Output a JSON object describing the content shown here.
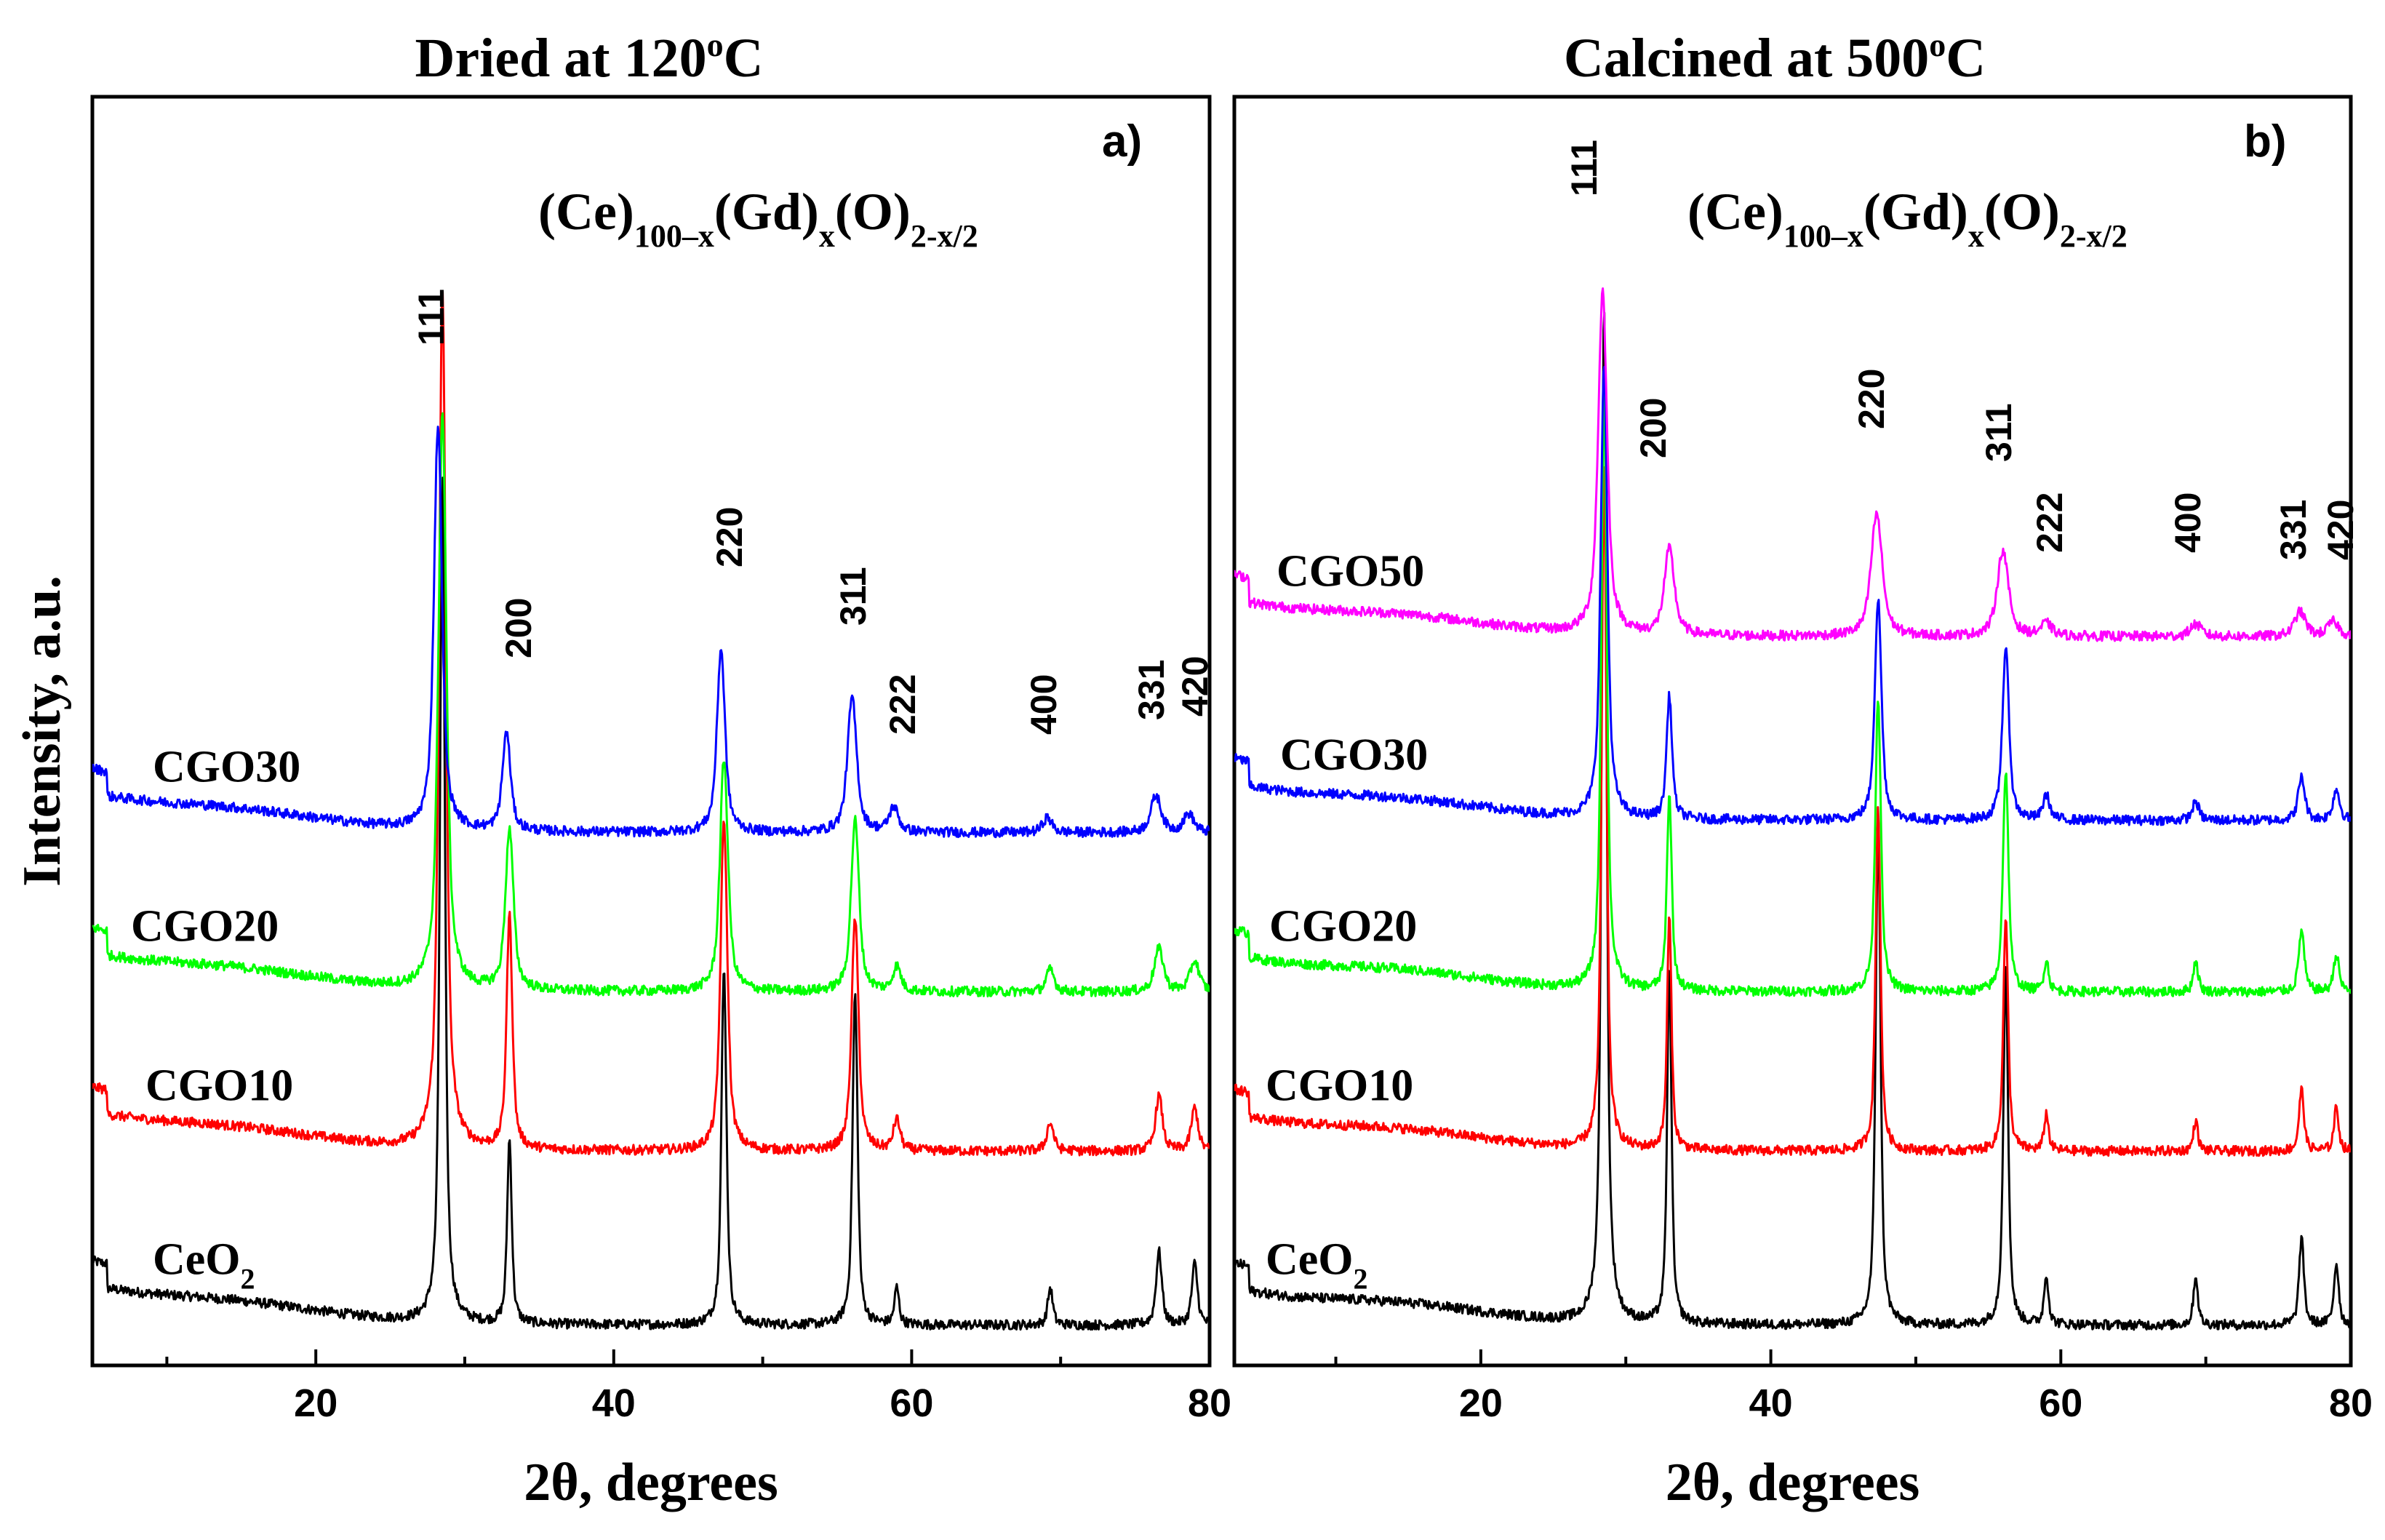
{
  "chart_data": [
    {
      "type": "line",
      "panel": "a)",
      "title": "Dried at 120°C",
      "title_main": "Dried at 120",
      "title_sup": "o",
      "title_unit": "C",
      "formula": {
        "p1": "(Ce)",
        "s1": "100–x",
        "p2": "(Gd)",
        "s2": "x",
        "p3": "(O)",
        "s3": "2-x/2"
      },
      "xlabel": "2θ, degrees",
      "ylabel": "Intensity, a.u.",
      "xlim": [
        5,
        80
      ],
      "xticks": [
        20,
        40,
        60,
        80
      ],
      "xtick_labels": [
        "20",
        "40",
        "60",
        "80"
      ],
      "minor_xticks": [
        10,
        30,
        50,
        70
      ],
      "ylim": [
        0,
        1.0
      ],
      "reflections": [
        {
          "hkl": "111",
          "x": 28.5
        },
        {
          "hkl": "200",
          "x": 33.0
        },
        {
          "hkl": "220",
          "x": 47.4
        },
        {
          "hkl": "311",
          "x": 56.2
        },
        {
          "hkl": "222",
          "x": 59.0
        },
        {
          "hkl": "400",
          "x": 69.3
        },
        {
          "hkl": "331",
          "x": 76.6
        },
        {
          "hkl": "420",
          "x": 79.0
        }
      ],
      "series": [
        {
          "name": "CeO2",
          "label_main": "CeO",
          "label_sub": "2",
          "color": "#000000",
          "baseline": 0.018,
          "peaks": [
            [
              28.5,
              0.69,
              0.22
            ],
            [
              33.0,
              0.15,
              0.2
            ],
            [
              47.4,
              0.29,
              0.22
            ],
            [
              56.2,
              0.27,
              0.22
            ],
            [
              59.0,
              0.03,
              0.2
            ],
            [
              69.3,
              0.03,
              0.22
            ],
            [
              76.6,
              0.06,
              0.25
            ],
            [
              79.0,
              0.05,
              0.25
            ]
          ]
        },
        {
          "name": "CGO10",
          "label_main": "CGO10",
          "label_sub": "",
          "color": "#ff0000",
          "baseline": 0.16,
          "peaks": [
            [
              28.5,
              0.7,
              0.3
            ],
            [
              33.0,
              0.19,
              0.25
            ],
            [
              47.4,
              0.27,
              0.3
            ],
            [
              56.2,
              0.19,
              0.3
            ],
            [
              59.0,
              0.025,
              0.3
            ],
            [
              69.3,
              0.023,
              0.3
            ],
            [
              76.6,
              0.045,
              0.3
            ],
            [
              79.0,
              0.035,
              0.3
            ]
          ]
        },
        {
          "name": "CGO20",
          "label_main": "CGO20",
          "label_sub": "",
          "color": "#00ff00",
          "baseline": 0.29,
          "peaks": [
            [
              28.5,
              0.47,
              0.35
            ],
            [
              33.0,
              0.13,
              0.35
            ],
            [
              47.4,
              0.19,
              0.35
            ],
            [
              56.2,
              0.14,
              0.35
            ],
            [
              59.0,
              0.02,
              0.35
            ],
            [
              69.3,
              0.018,
              0.35
            ],
            [
              76.6,
              0.035,
              0.4
            ],
            [
              79.0,
              0.025,
              0.4
            ]
          ]
        },
        {
          "name": "CGO30",
          "label_main": "CGO30",
          "label_sub": "",
          "color": "#0000ff",
          "baseline": 0.42,
          "peaks": [
            [
              28.2,
              0.33,
              0.35
            ],
            [
              32.8,
              0.08,
              0.35
            ],
            [
              47.2,
              0.15,
              0.35
            ],
            [
              56.0,
              0.11,
              0.4
            ],
            [
              58.8,
              0.02,
              0.4
            ],
            [
              69.1,
              0.012,
              0.4
            ],
            [
              76.4,
              0.03,
              0.45
            ],
            [
              78.6,
              0.015,
              0.45
            ]
          ]
        }
      ]
    },
    {
      "type": "line",
      "panel": "b)",
      "title": "Calcined at 500°C",
      "title_main": "Calcined at 500",
      "title_sup": "o",
      "title_unit": "C",
      "formula": {
        "p1": "(Ce)",
        "s1": "100–x",
        "p2": "(Gd)",
        "s2": "x",
        "p3": "(O)",
        "s3": "2-x/2"
      },
      "xlabel": "2θ, degrees",
      "xlim": [
        3,
        80
      ],
      "xticks": [
        20,
        40,
        60,
        80
      ],
      "xtick_labels": [
        "20",
        "40",
        "60",
        "80"
      ],
      "minor_xticks": [
        10,
        30,
        50,
        70
      ],
      "ylim": [
        0,
        1.0
      ],
      "reflections": [
        {
          "hkl": "111",
          "x": 28.5
        },
        {
          "hkl": "200",
          "x": 33.0
        },
        {
          "hkl": "220",
          "x": 47.4
        },
        {
          "hkl": "311",
          "x": 56.2
        },
        {
          "hkl": "222",
          "x": 59.0
        },
        {
          "hkl": "400",
          "x": 69.3
        },
        {
          "hkl": "331",
          "x": 76.6
        },
        {
          "hkl": "420",
          "x": 79.0
        }
      ],
      "series": [
        {
          "name": "CeO2",
          "label_main": "CeO",
          "label_sub": "2",
          "color": "#000000",
          "baseline": 0.018,
          "peaks": [
            [
              28.5,
              0.83,
              0.22
            ],
            [
              33.0,
              0.29,
              0.2
            ],
            [
              47.4,
              0.41,
              0.22
            ],
            [
              56.2,
              0.29,
              0.22
            ],
            [
              59.0,
              0.04,
              0.2
            ],
            [
              69.3,
              0.04,
              0.2
            ],
            [
              76.6,
              0.07,
              0.22
            ],
            [
              79.0,
              0.05,
              0.22
            ]
          ]
        },
        {
          "name": "CGO10",
          "label_main": "CGO10",
          "label_sub": "",
          "color": "#ff0000",
          "baseline": 0.16,
          "peaks": [
            [
              28.5,
              0.56,
              0.22
            ],
            [
              33.0,
              0.19,
              0.2
            ],
            [
              47.4,
              0.28,
              0.22
            ],
            [
              56.2,
              0.19,
              0.22
            ],
            [
              59.0,
              0.03,
              0.2
            ],
            [
              69.3,
              0.025,
              0.2
            ],
            [
              76.6,
              0.05,
              0.22
            ],
            [
              79.0,
              0.035,
              0.22
            ]
          ]
        },
        {
          "name": "CGO20",
          "label_main": "CGO20",
          "label_sub": "",
          "color": "#00ff00",
          "baseline": 0.29,
          "peaks": [
            [
              28.5,
              0.49,
              0.25
            ],
            [
              33.0,
              0.16,
              0.22
            ],
            [
              47.4,
              0.24,
              0.25
            ],
            [
              56.2,
              0.18,
              0.25
            ],
            [
              59.0,
              0.025,
              0.22
            ],
            [
              69.3,
              0.025,
              0.22
            ],
            [
              76.6,
              0.05,
              0.25
            ],
            [
              79.0,
              0.03,
              0.25
            ]
          ]
        },
        {
          "name": "CGO30",
          "label_main": "CGO30",
          "label_sub": "",
          "color": "#0000ff",
          "baseline": 0.43,
          "peaks": [
            [
              28.5,
              0.37,
              0.3
            ],
            [
              33.0,
              0.1,
              0.25
            ],
            [
              47.4,
              0.18,
              0.3
            ],
            [
              56.2,
              0.14,
              0.3
            ],
            [
              59.0,
              0.02,
              0.3
            ],
            [
              69.3,
              0.015,
              0.3
            ],
            [
              76.6,
              0.035,
              0.3
            ],
            [
              79.0,
              0.025,
              0.3
            ]
          ]
        },
        {
          "name": "CGO50",
          "label_main": "CGO50",
          "label_sub": "",
          "color": "#ff00ff",
          "baseline": 0.58,
          "peaks": [
            [
              28.4,
              0.28,
              0.4
            ],
            [
              33.0,
              0.07,
              0.45
            ],
            [
              47.3,
              0.1,
              0.5
            ],
            [
              56.0,
              0.07,
              0.5
            ],
            [
              59.0,
              0.01,
              0.5
            ],
            [
              69.3,
              0.01,
              0.5
            ],
            [
              76.5,
              0.02,
              0.5
            ],
            [
              78.8,
              0.012,
              0.5
            ]
          ]
        }
      ]
    }
  ]
}
